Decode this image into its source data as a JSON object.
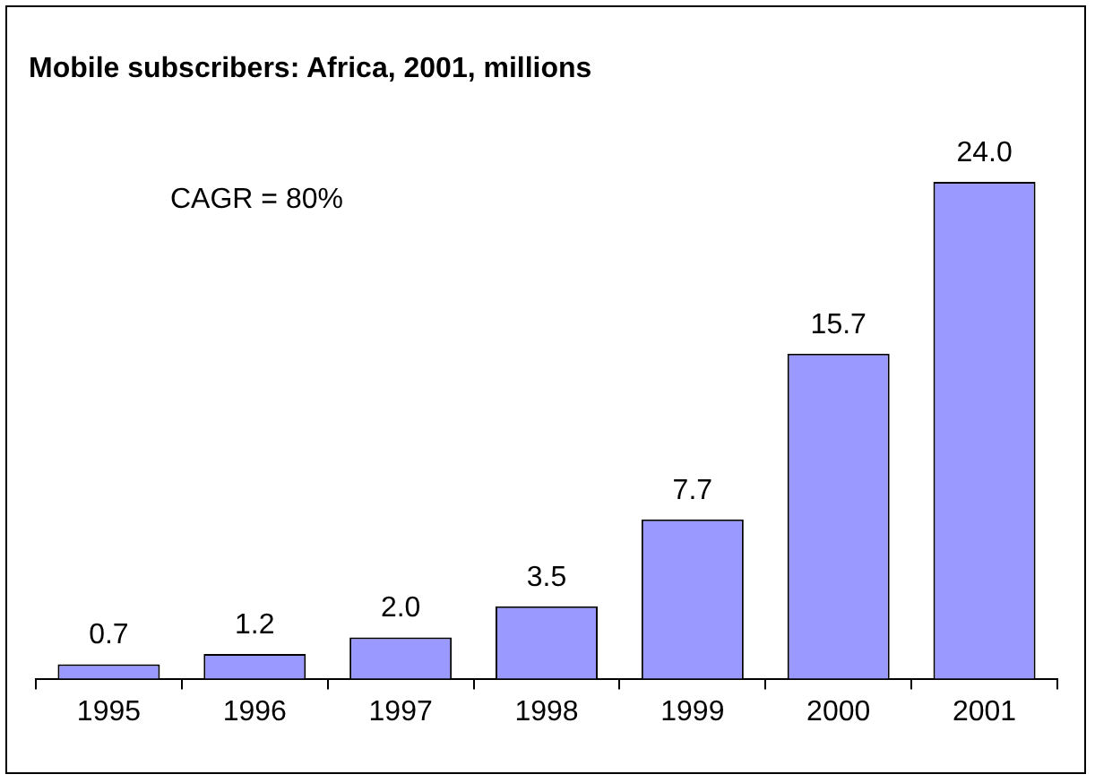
{
  "chart_data": {
    "type": "bar",
    "title": "Mobile subscribers: Africa, 2001, millions",
    "categories": [
      "1995",
      "1996",
      "1997",
      "1998",
      "1999",
      "2000",
      "2001"
    ],
    "values": [
      0.7,
      1.2,
      2.0,
      3.5,
      7.7,
      15.7,
      24.0
    ],
    "value_labels": [
      "0.7",
      "1.2",
      "2.0",
      "3.5",
      "7.7",
      "15.7",
      "24.0"
    ],
    "color": "#9999ff",
    "annotations": [
      "CAGR = 80%"
    ]
  }
}
